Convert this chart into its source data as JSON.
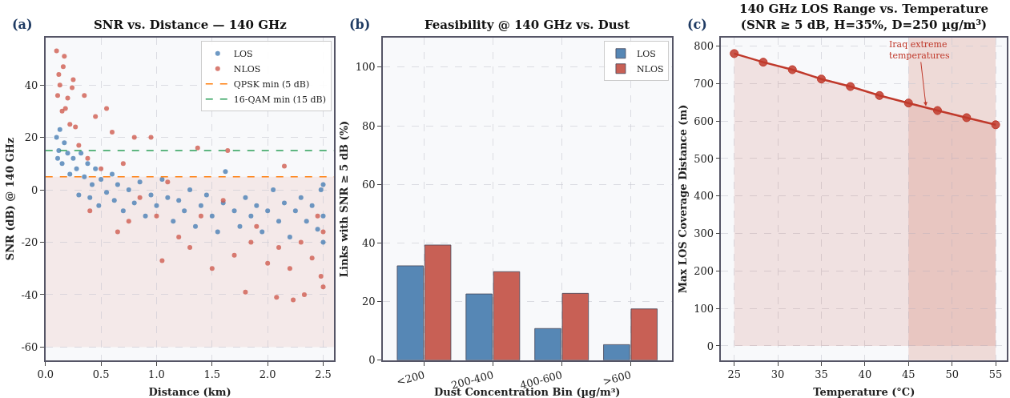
{
  "chart_data": [
    {
      "type": "scatter",
      "title": "SNR vs. Distance — 140 GHz",
      "xlabel": "Distance (km)",
      "ylabel": "SNR (dB) @ 140 GHz",
      "annotations": [
        "(a)"
      ],
      "xlim": [
        0,
        2.6
      ],
      "xticks": [
        {
          "value": 0,
          "label": "0.0"
        },
        0.5,
        {
          "value": 1,
          "label": "1.0"
        },
        1.5,
        {
          "value": 2,
          "label": "2.0"
        },
        2.5
      ],
      "ylim": [
        -65,
        58
      ],
      "yticks": [
        -60,
        -40,
        -20,
        0,
        20,
        40
      ],
      "grid": true,
      "legend": "top right",
      "marker": "circle",
      "series": [
        {
          "name": "LOS",
          "color": "#4a7fb5",
          "x": [
            0.1,
            0.11,
            0.12,
            0.13,
            0.15,
            0.17,
            0.2,
            0.22,
            0.25,
            0.28,
            0.3,
            0.32,
            0.35,
            0.38,
            0.4,
            0.42,
            0.45,
            0.48,
            0.5,
            0.55,
            0.6,
            0.62,
            0.65,
            0.7,
            0.75,
            0.8,
            0.85,
            0.9,
            0.95,
            1.0,
            1.05,
            1.1,
            1.15,
            1.2,
            1.25,
            1.3,
            1.35,
            1.4,
            1.45,
            1.5,
            1.55,
            1.6,
            1.62,
            1.7,
            1.75,
            1.8,
            1.85,
            1.9,
            1.95,
            2.0,
            2.05,
            2.1,
            2.15,
            2.2,
            2.25,
            2.3,
            2.35,
            2.4,
            2.45,
            2.48,
            2.5,
            2.5,
            2.5
          ],
          "values": [
            20,
            12,
            15,
            23,
            10,
            18,
            14,
            6,
            12,
            8,
            -2,
            14,
            5,
            10,
            -3,
            2,
            8,
            -6,
            4,
            -1,
            6,
            -4,
            2,
            -8,
            0,
            -5,
            3,
            -10,
            -2,
            -6,
            4,
            -3,
            -12,
            -4,
            -8,
            0,
            -14,
            -6,
            -2,
            -10,
            -16,
            -5,
            7,
            -8,
            -14,
            -3,
            -10,
            -6,
            -16,
            -8,
            0,
            -12,
            -5,
            -18,
            -8,
            -3,
            -12,
            -6,
            -15,
            0,
            -10,
            2,
            -20
          ]
        },
        {
          "name": "NLOS",
          "color": "#d05c50",
          "x": [
            0.1,
            0.11,
            0.12,
            0.13,
            0.15,
            0.16,
            0.17,
            0.18,
            0.2,
            0.22,
            0.24,
            0.25,
            0.27,
            0.3,
            0.35,
            0.38,
            0.4,
            0.45,
            0.5,
            0.55,
            0.6,
            0.65,
            0.7,
            0.75,
            0.8,
            0.85,
            0.95,
            1.0,
            1.05,
            1.1,
            1.2,
            1.3,
            1.37,
            1.4,
            1.5,
            1.6,
            1.64,
            1.7,
            1.8,
            1.85,
            1.9,
            2.0,
            2.08,
            2.1,
            2.15,
            2.2,
            2.23,
            2.3,
            2.33,
            2.4,
            2.45,
            2.48,
            2.5,
            2.5
          ],
          "values": [
            53,
            36,
            44,
            40,
            30,
            47,
            51,
            31,
            35,
            25,
            39,
            42,
            24,
            17,
            36,
            12,
            -8,
            28,
            8,
            31,
            22,
            -16,
            10,
            -12,
            20,
            -3,
            20,
            -10,
            -27,
            3,
            -18,
            -22,
            16,
            -10,
            -30,
            -4,
            15,
            -25,
            -39,
            -20,
            -14,
            -28,
            -41,
            -22,
            9,
            -30,
            -42,
            -20,
            -40,
            -26,
            -10,
            -33,
            -37,
            -16
          ]
        },
        {
          "type": "line",
          "name": "QPSK min (5 dB)",
          "color": "#ff7f0e",
          "line_style": "dashed",
          "marker": "none",
          "x": [
            0,
            2.6
          ],
          "values": [
            5,
            5
          ]
        },
        {
          "type": "line",
          "name": "16-QAM min (15 dB)",
          "color": "#2ca05a",
          "line_style": "dashed",
          "marker": "none",
          "x": [
            0,
            2.6
          ],
          "values": [
            15,
            15
          ]
        }
      ],
      "bands": [
        {
          "axis": "y",
          "from": -60,
          "to": 5,
          "color": "#f2dede"
        }
      ]
    },
    {
      "type": "bar",
      "title": "Feasibility @ 140 GHz vs. Dust",
      "xlabel": "Dust Concentration Bin (µg/m³)",
      "ylabel": "Links with SNR ≥ 5 dB (%)",
      "annotations": [
        "(b)"
      ],
      "categories": [
        "<200",
        "200-400",
        "400-600",
        ">600"
      ],
      "ylim": [
        0,
        110
      ],
      "yticks": [
        0,
        20,
        40,
        60,
        80,
        100
      ],
      "grid": true,
      "legend": "top right",
      "series": [
        {
          "name": "LOS",
          "color": "#5687b5",
          "values": [
            32.2,
            22.6,
            10.8,
            5.3
          ]
        },
        {
          "name": "NLOS",
          "color": "#c86055",
          "values": [
            39.3,
            30.2,
            22.8,
            17.5
          ]
        }
      ]
    },
    {
      "type": "area",
      "title": "140 GHz LOS Range vs. Temperature\n(SNR ≥ 5 dB, H=35%, D=250 µg/m³)",
      "xlabel": "Temperature (°C)",
      "ylabel": "Max LOS Coverage Distance (m)",
      "annotations": [
        "(c)",
        {
          "text": "Iraq extreme\ntemperatures",
          "x": 47,
          "y": 640
        }
      ],
      "x": [
        25,
        28.33,
        31.67,
        35,
        38.33,
        41.67,
        45,
        48.33,
        51.67,
        55
      ],
      "xlim": [
        23.5,
        56.3
      ],
      "xticks": [
        25,
        30,
        35,
        40,
        45,
        50,
        55
      ],
      "ylim": [
        -38,
        822
      ],
      "yticks": [
        0,
        100,
        200,
        300,
        400,
        500,
        600,
        700,
        800
      ],
      "grid": true,
      "marker": "circle",
      "series": [
        {
          "color": "#c0392b",
          "values": [
            780,
            757,
            737,
            712,
            692,
            668,
            648,
            628,
            609,
            590
          ]
        }
      ],
      "bands": [
        {
          "axis": "x",
          "from": 45,
          "to": 55,
          "color": "#e8c4c0"
        }
      ]
    }
  ]
}
